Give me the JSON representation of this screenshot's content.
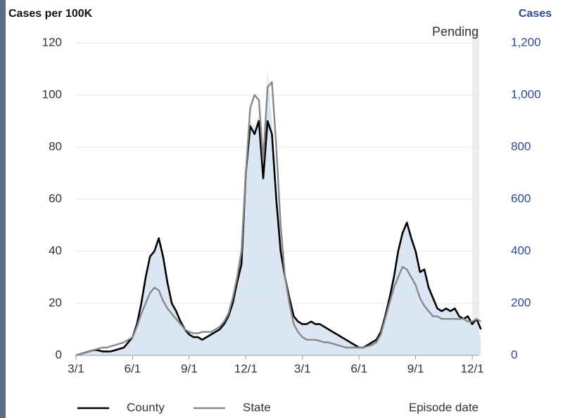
{
  "chart_data": {
    "type": "line",
    "title": "Cases per 100K",
    "y2_title": "Cases",
    "annotation": "Pending",
    "x_label": "Episode date",
    "categories": [
      "3/1",
      null,
      null,
      null,
      null,
      null,
      null,
      null,
      null,
      null,
      null,
      null,
      null,
      "6/1",
      null,
      null,
      null,
      null,
      null,
      null,
      null,
      null,
      null,
      null,
      null,
      null,
      "9/1",
      null,
      null,
      null,
      null,
      null,
      null,
      null,
      null,
      null,
      null,
      null,
      null,
      "12/1",
      null,
      null,
      null,
      null,
      null,
      null,
      null,
      null,
      null,
      null,
      null,
      null,
      "3/1",
      null,
      null,
      null,
      null,
      null,
      null,
      null,
      null,
      null,
      null,
      null,
      null,
      "6/1",
      null,
      null,
      null,
      null,
      null,
      null,
      null,
      null,
      null,
      null,
      null,
      null,
      "9/1",
      null,
      null,
      null,
      null,
      null,
      null,
      null,
      null,
      null,
      null,
      null,
      null,
      "12/1",
      null,
      null
    ],
    "series": [
      {
        "name": "County",
        "color": "#000000",
        "values": [
          0,
          0.5,
          1,
          1.5,
          2,
          2,
          1.5,
          1.5,
          1.5,
          2,
          2.5,
          3,
          5,
          7,
          12,
          20,
          30,
          38,
          40,
          45,
          38,
          28,
          20,
          17,
          13,
          10,
          8,
          7,
          7,
          6,
          7,
          8,
          9,
          10,
          12,
          15,
          20,
          28,
          35,
          70,
          88,
          85,
          90,
          68,
          90,
          85,
          60,
          40,
          30,
          22,
          15,
          13,
          12,
          12,
          13,
          12,
          12,
          11,
          10,
          9,
          8,
          7,
          6,
          5,
          4,
          3,
          3,
          4,
          5,
          6,
          9,
          15,
          22,
          30,
          40,
          47,
          51,
          45,
          40,
          32,
          33,
          26,
          22,
          18,
          17,
          18,
          17,
          18,
          15,
          14,
          15,
          12,
          14,
          10
        ]
      },
      {
        "name": "State",
        "color": "#888888",
        "values": [
          0,
          0.5,
          1,
          1.5,
          2,
          2.5,
          3,
          3,
          3.5,
          4,
          4.5,
          5,
          6,
          7,
          11,
          16,
          20,
          24,
          26,
          25,
          21,
          18,
          16,
          14,
          12,
          10,
          9,
          8.5,
          8.5,
          9,
          9,
          9,
          10,
          11,
          13,
          16,
          22,
          30,
          40,
          70,
          95,
          100,
          98,
          75,
          103,
          105,
          80,
          50,
          30,
          20,
          12,
          9,
          7,
          6,
          6,
          6,
          5.5,
          5,
          5,
          4.5,
          4,
          3.5,
          3,
          3,
          3,
          3,
          3,
          3.5,
          4,
          5,
          8,
          14,
          20,
          26,
          30,
          34,
          33,
          30,
          27,
          22,
          19,
          17,
          15,
          15,
          14,
          14,
          14,
          14,
          14,
          14,
          13,
          13,
          14,
          13
        ]
      },
      {
        "name": "Cases",
        "color": "#dbe6f4",
        "axis": "y2",
        "type": "area",
        "values": [
          0,
          5,
          10,
          15,
          20,
          20,
          15,
          15,
          15,
          20,
          25,
          30,
          50,
          70,
          120,
          200,
          300,
          380,
          400,
          450,
          380,
          280,
          200,
          170,
          130,
          100,
          80,
          70,
          70,
          60,
          70,
          80,
          90,
          100,
          120,
          150,
          200,
          280,
          400,
          750,
          900,
          880,
          920,
          700,
          1100,
          900,
          620,
          400,
          300,
          220,
          150,
          130,
          120,
          120,
          130,
          120,
          120,
          110,
          100,
          90,
          80,
          70,
          60,
          50,
          40,
          30,
          30,
          40,
          50,
          60,
          90,
          150,
          220,
          300,
          400,
          470,
          510,
          450,
          400,
          320,
          330,
          260,
          220,
          180,
          170,
          180,
          170,
          180,
          150,
          140,
          150,
          120,
          140,
          60
        ]
      }
    ],
    "ylim": [
      0,
      120
    ],
    "yticks": [
      0,
      20,
      40,
      60,
      80,
      100,
      120
    ],
    "y2lim": [
      0,
      1200
    ],
    "y2ticks": [
      0,
      200,
      400,
      600,
      800,
      {
        "value": 1000,
        "label": "1,000"
      },
      {
        "value": 1200,
        "label": "1,200"
      }
    ],
    "grid": true,
    "legend": "bottom"
  }
}
